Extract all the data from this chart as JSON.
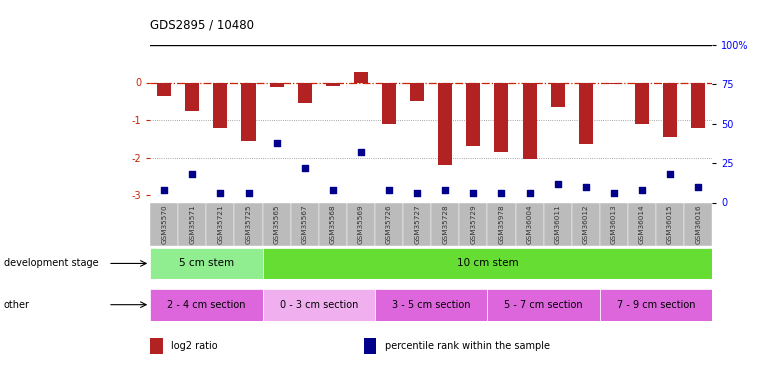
{
  "title": "GDS2895 / 10480",
  "samples": [
    "GSM35570",
    "GSM35571",
    "GSM35721",
    "GSM35725",
    "GSM35565",
    "GSM35567",
    "GSM35568",
    "GSM35569",
    "GSM35726",
    "GSM35727",
    "GSM35728",
    "GSM35729",
    "GSM35978",
    "GSM36004",
    "GSM36011",
    "GSM36012",
    "GSM36013",
    "GSM36014",
    "GSM36015",
    "GSM36016"
  ],
  "log2_ratio": [
    -0.35,
    -0.75,
    -1.2,
    -1.55,
    -0.12,
    -0.55,
    -0.08,
    0.28,
    -1.1,
    -0.5,
    -2.2,
    -1.7,
    -1.85,
    -2.05,
    -0.65,
    -1.65,
    -0.05,
    -1.1,
    -1.45,
    -1.2
  ],
  "percentile_rank": [
    8,
    18,
    6,
    6,
    38,
    22,
    8,
    32,
    8,
    6,
    8,
    6,
    6,
    6,
    12,
    10,
    6,
    8,
    18,
    10
  ],
  "ylim_left": [
    -3.2,
    1.0
  ],
  "ylim_right": [
    0,
    100
  ],
  "yticks_left": [
    -3,
    -2,
    -1,
    0
  ],
  "yticks_right": [
    0,
    25,
    50,
    75,
    100
  ],
  "bar_color": "#b22222",
  "scatter_color": "#00008b",
  "hline_color": "#cc2200",
  "dotted_color": "#888888",
  "bgcolor": "#ffffff",
  "dev_stage_groups": [
    {
      "label": "5 cm stem",
      "start": 0,
      "end": 4,
      "color": "#90ee90"
    },
    {
      "label": "10 cm stem",
      "start": 4,
      "end": 20,
      "color": "#66dd33"
    }
  ],
  "other_groups": [
    {
      "label": "2 - 4 cm section",
      "start": 0,
      "end": 4,
      "color": "#dd66dd"
    },
    {
      "label": "0 - 3 cm section",
      "start": 4,
      "end": 8,
      "color": "#f0b0f0"
    },
    {
      "label": "3 - 5 cm section",
      "start": 8,
      "end": 12,
      "color": "#dd66dd"
    },
    {
      "label": "5 - 7 cm section",
      "start": 12,
      "end": 16,
      "color": "#dd66dd"
    },
    {
      "label": "7 - 9 cm section",
      "start": 16,
      "end": 20,
      "color": "#dd66dd"
    }
  ],
  "legend_items": [
    {
      "color": "#b22222",
      "label": "log2 ratio"
    },
    {
      "color": "#00008b",
      "label": "percentile rank within the sample"
    }
  ],
  "sample_box_color": "#bbbbbb"
}
